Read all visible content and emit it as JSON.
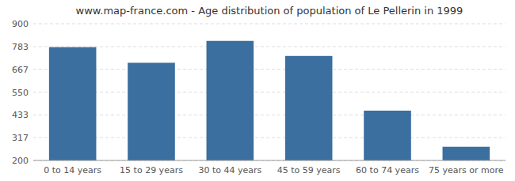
{
  "chart_data": {
    "type": "bar",
    "title": "www.map-france.com - Age distribution of population of Le Pellerin in 1999",
    "categories": [
      "0 to 14 years",
      "15 to 29 years",
      "30 to 44 years",
      "45 to 59 years",
      "60 to 74 years",
      "75 years or more"
    ],
    "values": [
      780,
      700,
      812,
      735,
      455,
      270
    ],
    "color": "#3a6f9f",
    "ylim": [
      200,
      900
    ],
    "yticks": [
      200,
      317,
      433,
      550,
      667,
      783,
      900
    ],
    "grid": true
  }
}
